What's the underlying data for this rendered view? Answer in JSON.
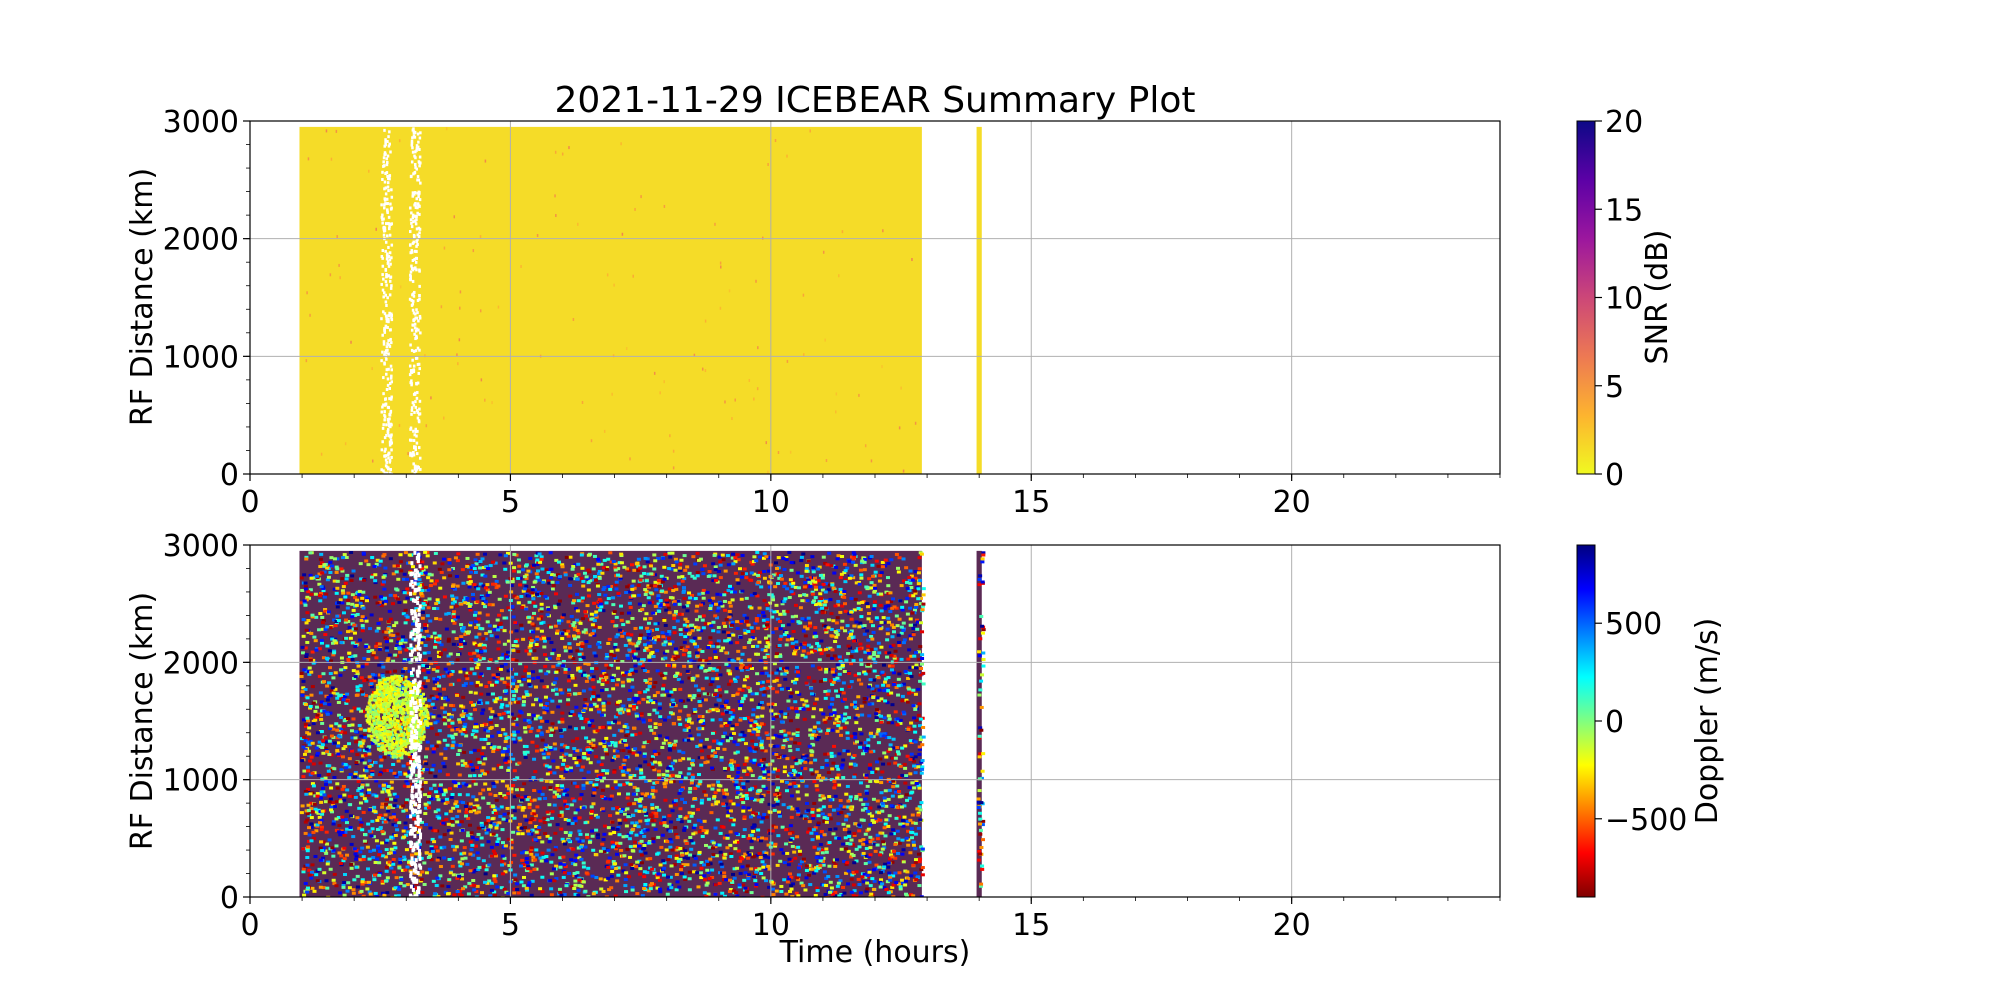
{
  "figure": {
    "title": "2021-11-29 ICEBEAR Summary Plot",
    "xlabel": "Time (hours)"
  },
  "chart_data": [
    {
      "type": "scatter",
      "panel": "snr",
      "title": "2021-11-29 ICEBEAR Summary Plot",
      "xlabel": "",
      "ylabel": "RF Distance (km)",
      "xlim": [
        0,
        24
      ],
      "ylim": [
        0,
        3000
      ],
      "x_ticks": [
        "0",
        "5",
        "10",
        "15",
        "20"
      ],
      "y_ticks": [
        "0",
        "1000",
        "2000",
        "3000"
      ],
      "grid": true,
      "colorbar": {
        "label": "SNR (dB)",
        "range": [
          0,
          20
        ],
        "ticks": [
          "0",
          "5",
          "10",
          "15",
          "20"
        ],
        "colormap": "plasma_r",
        "colors": [
          "#f0f921",
          "#fdb42f",
          "#ed7953",
          "#cc4778",
          "#9c179e",
          "#5c01a6",
          "#0d0887"
        ]
      },
      "data_regions": [
        {
          "x_range": [
            0.95,
            12.9
          ],
          "y_range": [
            0,
            2950
          ],
          "dominant_value_db": 0,
          "color": "#f5dc28"
        },
        {
          "x_range": [
            13.95,
            14.05
          ],
          "y_range": [
            0,
            2950
          ],
          "dominant_value_db": 0,
          "color": "#f5dc28"
        }
      ],
      "gaps": [
        {
          "x_range": [
            2.5,
            2.7
          ],
          "y_range": [
            0,
            2950
          ],
          "sparse": true
        },
        {
          "x_range": [
            3.05,
            3.25
          ],
          "y_range": [
            0,
            2950
          ],
          "sparse": true
        }
      ]
    },
    {
      "type": "scatter",
      "panel": "doppler",
      "xlabel": "Time (hours)",
      "ylabel": "RF Distance (km)",
      "xlim": [
        0,
        24
      ],
      "ylim": [
        0,
        3000
      ],
      "x_ticks": [
        "0",
        "5",
        "10",
        "15",
        "20"
      ],
      "y_ticks": [
        "0",
        "1000",
        "2000",
        "3000"
      ],
      "grid": true,
      "colorbar": {
        "label": "Doppler (m/s)",
        "range": [
          -900,
          900
        ],
        "ticks": [
          "−500",
          "0",
          "500"
        ],
        "tick_values": [
          -500,
          0,
          500
        ],
        "colormap": "jet_r",
        "colors": [
          "#800000",
          "#ff0000",
          "#ff8000",
          "#ffff00",
          "#80ff80",
          "#00ffff",
          "#0080ff",
          "#0000ff",
          "#000080"
        ]
      },
      "data_regions": [
        {
          "x_range": [
            0.95,
            12.9
          ],
          "y_range": [
            0,
            2950
          ],
          "pattern": "random velocities -900 to 900 m/s"
        },
        {
          "x_range": [
            13.95,
            14.05
          ],
          "y_range": [
            0,
            2950
          ],
          "pattern": "random velocities -900 to 900 m/s"
        }
      ],
      "features": [
        {
          "name": "echo",
          "x_range": [
            2.2,
            3.4
          ],
          "y_range": [
            1200,
            1900
          ],
          "doppler_ms": [
            0,
            300
          ]
        }
      ],
      "gaps": [
        {
          "x_range": [
            3.05,
            3.25
          ],
          "y_range": [
            0,
            2950
          ],
          "sparse": true
        }
      ]
    }
  ]
}
